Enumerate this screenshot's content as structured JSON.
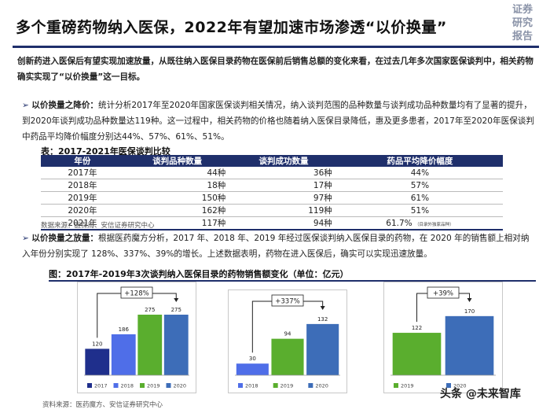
{
  "header": {
    "title": "多个重磅药物纳入医保，2022年有望加速市场渗透“以价换量”",
    "corner_lines": [
      "证券",
      "研究",
      "报告"
    ]
  },
  "intro": {
    "text": "创新药进入医保后有望实现加速放量，从既往纳入医保目录药物在医保前后销售总额的变化来看，在过去几年多次国家医保谈判中，相关药物确实实现了“以价换量”这一目标。"
  },
  "bullets": [
    {
      "marker": "➢",
      "label": "以价换量之降价：",
      "text": "统计分析2017年至2020年国家医保谈判相关情况，纳入谈判范围的品种数量与谈判成功品种数量均有了显著的提升，到2020年谈判成功品种数量达119种。这一过程中，相关药物的价格也随着纳入医保目录降低，惠及更多患者，2017年至2020年医保谈判中药品平均降价幅度分别达44%、57%、61%、51%。"
    },
    {
      "marker": "➢",
      "label": "以价换量之放量：",
      "text": "根据医药魔方分析，2017 年、2018 年、2019 年经过医保谈判纳入医保目录的药物，在 2020 年的销售额上相对纳入年份分别实现了 128%、337%、39%的增长。上述数据表明，药物在进入医保后，确实可以实现迅速放量。"
    }
  ],
  "table": {
    "caption": "表：2017-2021年医保谈判比较",
    "headers": [
      "年份",
      "谈判品种数量",
      "谈判成功数量",
      "药品平均降价幅度"
    ],
    "rows": [
      {
        "year": "2017年",
        "candidates": "44种",
        "success": "36种",
        "cut": "44%",
        "note": ""
      },
      {
        "year": "2018年",
        "candidates": "18种",
        "success": "17种",
        "cut": "57%",
        "note": ""
      },
      {
        "year": "2019年",
        "candidates": "150种",
        "success": "97种",
        "cut": "61%",
        "note": ""
      },
      {
        "year": "2020年",
        "candidates": "162种",
        "success": "119种",
        "cut": "51%",
        "note": ""
      },
      {
        "year": "2021年",
        "candidates": "117种",
        "success": "94种",
        "cut": "61.7%",
        "note": "（目录外独家品种）"
      }
    ],
    "source": "数据来源：医保局、安信证券研究中心"
  },
  "figure": {
    "caption": "图：2017年-2019年3次谈判纳入医保目录的药物销售额变化（单位：亿元）",
    "source": "资料来源：医药魔方、安信证券研究中心",
    "colors": {
      "2017": "#1f2f8c",
      "2018": "#4f6ee8",
      "2019": "#5aae2e",
      "2020": "#3d6db8"
    }
  },
  "chart_data": [
    {
      "type": "bar",
      "title": "",
      "categories": [
        "2017",
        "2018",
        "2019",
        "2020"
      ],
      "values": [
        120,
        186,
        275,
        275
      ],
      "annotation": "+128%",
      "ylim": [
        0,
        300
      ]
    },
    {
      "type": "bar",
      "title": "",
      "categories": [
        "2018",
        "2019",
        "2020"
      ],
      "values": [
        30,
        94,
        132
      ],
      "annotation": "+337%",
      "ylim": [
        0,
        150
      ]
    },
    {
      "type": "bar",
      "title": "",
      "categories": [
        "2019",
        "2020"
      ],
      "values": [
        122,
        170
      ],
      "annotation": "+39%",
      "ylim": [
        0,
        190
      ]
    }
  ],
  "watermark": {
    "text": "头条 @未来智库"
  }
}
